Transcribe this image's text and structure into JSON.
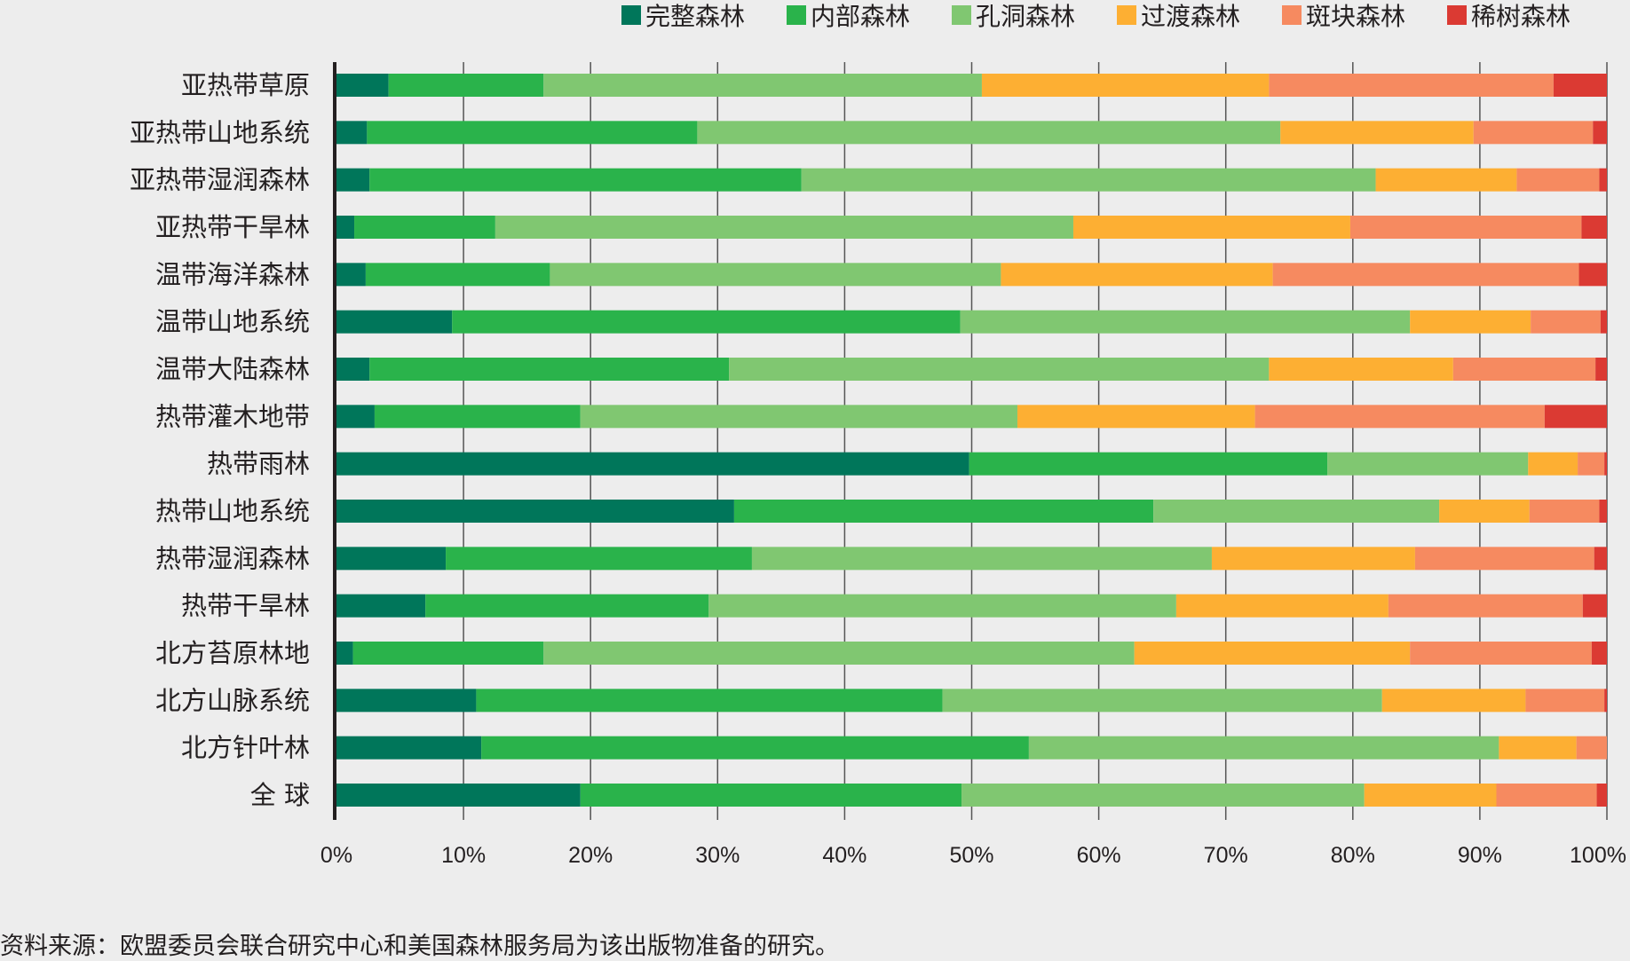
{
  "chart_data": {
    "type": "bar",
    "orientation": "horizontal",
    "stacked": true,
    "title": "",
    "xlabel": "",
    "ylabel": "",
    "xlim": [
      0,
      100
    ],
    "x_ticks": [
      "0%",
      "10%",
      "20%",
      "30%",
      "40%",
      "50%",
      "60%",
      "70%",
      "80%",
      "90%",
      "100%"
    ],
    "grid": true,
    "legend_position": "top-right",
    "categories": [
      "亚热带草原",
      "亚热带山地系统",
      "亚热带湿润森林",
      "亚热带干旱林",
      "温带海洋森林",
      "温带山地系统",
      "温带大陆森林",
      "热带灌木地带",
      "热带雨林",
      "热带山地系统",
      "热带湿润森林",
      "热带干旱林",
      "北方苔原林地",
      "北方山脉系统",
      "北方针叶林",
      "全 球"
    ],
    "series": [
      {
        "name": "完整森林",
        "color": "#00765a",
        "values": [
          4.1,
          2.4,
          2.6,
          1.4,
          2.3,
          9.1,
          2.6,
          3.0,
          49.8,
          31.3,
          8.6,
          7.0,
          1.3,
          11.0,
          11.4,
          19.2
        ]
      },
      {
        "name": "内部森林",
        "color": "#2ab34b",
        "values": [
          12.2,
          26.0,
          34.0,
          11.1,
          14.5,
          40.0,
          28.3,
          16.2,
          28.2,
          33.0,
          24.1,
          22.3,
          15.0,
          36.7,
          43.1,
          30.0
        ]
      },
      {
        "name": "孔洞森林",
        "color": "#80c771",
        "values": [
          34.5,
          45.9,
          45.2,
          45.5,
          35.5,
          35.4,
          42.5,
          34.4,
          15.8,
          22.5,
          36.2,
          36.8,
          46.5,
          34.6,
          37.0,
          31.7
        ]
      },
      {
        "name": "过渡森林",
        "color": "#fdaf33",
        "values": [
          22.6,
          15.2,
          11.1,
          21.8,
          21.4,
          9.5,
          14.5,
          18.7,
          3.9,
          7.1,
          16.0,
          16.7,
          21.7,
          11.3,
          6.1,
          10.4
        ]
      },
      {
        "name": "斑块森林",
        "color": "#f68a60",
        "values": [
          22.4,
          9.4,
          6.5,
          18.2,
          24.1,
          5.5,
          11.2,
          22.8,
          2.1,
          5.5,
          14.1,
          15.3,
          14.3,
          6.2,
          2.4,
          7.9
        ]
      },
      {
        "name": "稀树森林",
        "color": "#db3a33",
        "values": [
          4.2,
          1.1,
          0.6,
          2.0,
          2.2,
          0.5,
          0.9,
          4.9,
          0.2,
          0.6,
          1.0,
          1.9,
          1.2,
          0.2,
          0.0,
          0.8
        ]
      }
    ],
    "source_note": "资料来源：欧盟委员会联合研究中心和美国森林服务局为该出版物准备的研究。"
  }
}
